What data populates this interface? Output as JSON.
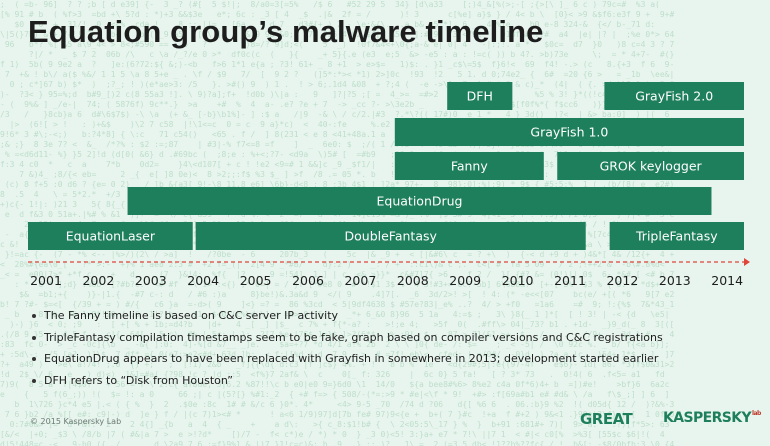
{
  "title": "Equation group’s malware timeline",
  "chart_data": {
    "type": "timeline",
    "x": [
      "2001",
      "2002",
      "2003",
      "2004",
      "2005",
      "2006",
      "2007",
      "2008",
      "2009",
      "2010",
      "2011",
      "2012",
      "2013",
      "2014"
    ],
    "bars": [
      {
        "name": "DFH",
        "start": 2009.0,
        "end": 2009.9
      },
      {
        "name": "GrayFish 2.0",
        "start": 2012.0,
        "end": 2014.4
      },
      {
        "name": "GrayFish 1.0",
        "start": 2008.0,
        "end": 2014.4
      },
      {
        "name": "Fanny",
        "start": 2008.0,
        "end": 2010.5
      },
      {
        "name": "GROK keylogger",
        "start": 2011.1,
        "end": 2014.4
      },
      {
        "name": "EquationDrug",
        "start": 2002.9,
        "end": 2013.7
      },
      {
        "name": "EquationLaser",
        "start": 2001.0,
        "end": 2003.8
      },
      {
        "name": "DoubleFantasy",
        "start": 2004.2,
        "end": 2011.3
      },
      {
        "name": "TripleFantasy",
        "start": 2012.1,
        "end": 2014.4
      }
    ]
  },
  "notes": [
    "The Fanny timeline is based on C&C server IP activity",
    "TripleFantasy compilation timestamps seem to be fake, graph based on compiler versions and C&C registrations",
    "EquationDrug appears to have been replaced with Grayfish in somewhere in 2013; development started earlier",
    "DFH refers to “Disk from Houston”"
  ],
  "footer": {
    "copyright": "© 2015 Kaspersky Lab",
    "great": "GREAT",
    "kaspersky": "KASPERSKY",
    "kaspersky_lab": "lab"
  },
  "colors": {
    "bar": "#1e7f5c",
    "arrow": "#e0453a",
    "background": "#e8f5ee"
  }
}
